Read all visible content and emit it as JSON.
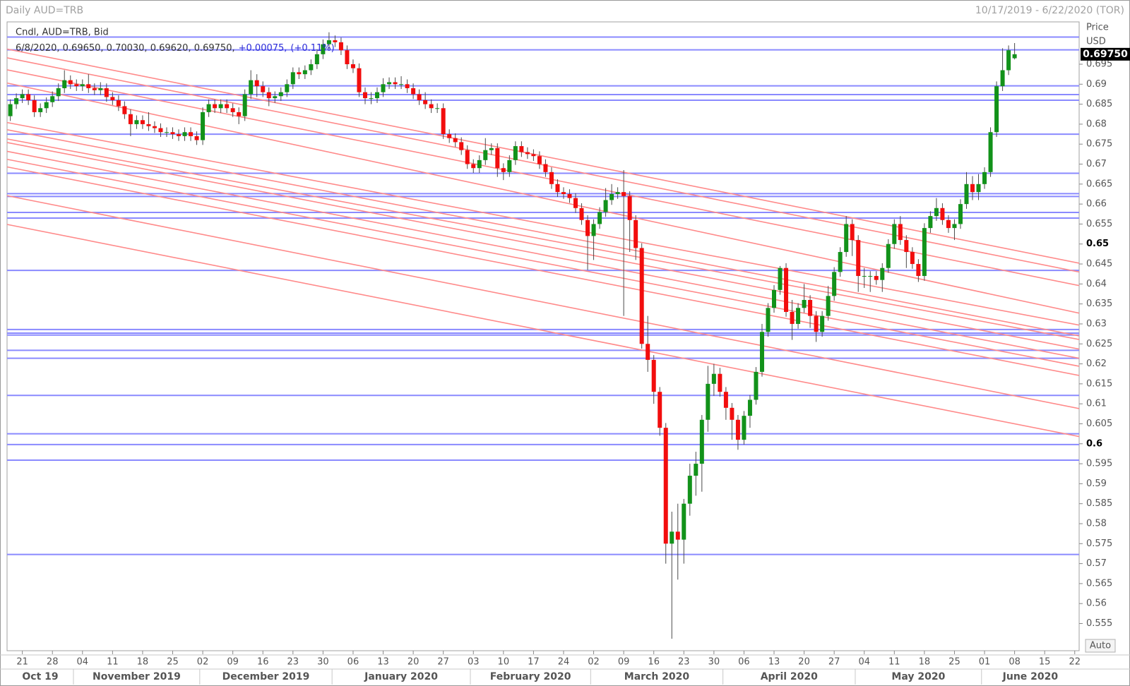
{
  "chart_data": {
    "type": "candlestick",
    "header_left": "Daily AUD=TRB",
    "header_right": "10/17/2019 - 6/22/2020 (TOR)",
    "legend_title": "Cndl, AUD=TRB, Bid",
    "legend_ohlc": "6/8/2020, 0.69650, 0.70030, 0.69620, 0.69750,",
    "legend_change": "+0.00075,",
    "legend_change_pct": "(+0.11%)",
    "y_label": "Price",
    "y_unit": "USD",
    "auto_button": "Auto",
    "up_color": "#12921a",
    "down_color": "#f20d0d",
    "wick_color": "#4a4a4a",
    "level_color": "#8a8aff",
    "trend_color": "#ff8a8a",
    "ylim": [
      0.5482,
      0.7056
    ],
    "yticks": [
      0.555,
      0.56,
      0.565,
      0.57,
      0.575,
      0.58,
      0.585,
      0.59,
      0.595,
      0.6,
      0.605,
      0.61,
      0.615,
      0.62,
      0.625,
      0.63,
      0.635,
      0.64,
      0.645,
      0.65,
      0.655,
      0.66,
      0.665,
      0.67,
      0.675,
      0.68,
      0.685,
      0.69,
      0.695
    ],
    "last_price": {
      "value": 0.6975,
      "label": "0.69750"
    },
    "xticks": [
      {
        "value": "2019-10-21",
        "label": "21"
      },
      {
        "value": "2019-10-28",
        "label": "28"
      },
      {
        "value": "2019-11-04",
        "label": "04"
      },
      {
        "value": "2019-11-11",
        "label": "11"
      },
      {
        "value": "2019-11-18",
        "label": "18"
      },
      {
        "value": "2019-11-25",
        "label": "25"
      },
      {
        "value": "2019-12-02",
        "label": "02"
      },
      {
        "value": "2019-12-09",
        "label": "09"
      },
      {
        "value": "2019-12-16",
        "label": "16"
      },
      {
        "value": "2019-12-23",
        "label": "23"
      },
      {
        "value": "2019-12-30",
        "label": "30"
      },
      {
        "value": "2020-01-06",
        "label": "06"
      },
      {
        "value": "2020-01-13",
        "label": "13"
      },
      {
        "value": "2020-01-20",
        "label": "20"
      },
      {
        "value": "2020-01-27",
        "label": "27"
      },
      {
        "value": "2020-02-03",
        "label": "03"
      },
      {
        "value": "2020-02-10",
        "label": "10"
      },
      {
        "value": "2020-02-17",
        "label": "17"
      },
      {
        "value": "2020-02-24",
        "label": "24"
      },
      {
        "value": "2020-03-02",
        "label": "02"
      },
      {
        "value": "2020-03-09",
        "label": "09"
      },
      {
        "value": "2020-03-16",
        "label": "16"
      },
      {
        "value": "2020-03-23",
        "label": "23"
      },
      {
        "value": "2020-03-30",
        "label": "30"
      },
      {
        "value": "2020-04-06",
        "label": "06"
      },
      {
        "value": "2020-04-13",
        "label": "13"
      },
      {
        "value": "2020-04-20",
        "label": "20"
      },
      {
        "value": "2020-04-27",
        "label": "27"
      },
      {
        "value": "2020-05-04",
        "label": "04"
      },
      {
        "value": "2020-05-11",
        "label": "11"
      },
      {
        "value": "2020-05-18",
        "label": "18"
      },
      {
        "value": "2020-05-25",
        "label": "25"
      },
      {
        "value": "2020-06-01",
        "label": "01"
      },
      {
        "value": "2020-06-08",
        "label": "08"
      },
      {
        "value": "2020-06-15",
        "label": "15"
      },
      {
        "value": "2020-06-22",
        "label": "22"
      }
    ],
    "month_labels": [
      {
        "value": "2019-10-01",
        "label": "Oct 19"
      },
      {
        "value": "2019-11-01",
        "label": "November 2019"
      },
      {
        "value": "2019-12-01",
        "label": "December 2019"
      },
      {
        "value": "2020-01-01",
        "label": "January 2020"
      },
      {
        "value": "2020-02-01",
        "label": "February 2020"
      },
      {
        "value": "2020-03-01",
        "label": "March 2020"
      },
      {
        "value": "2020-04-01",
        "label": "April 2020"
      },
      {
        "value": "2020-05-01",
        "label": "May 2020"
      },
      {
        "value": "2020-06-01",
        "label": "June 2020"
      }
    ],
    "levels": [
      0.7018,
      0.6986,
      0.6896,
      0.6874,
      0.686,
      0.6775,
      0.6677,
      0.6626,
      0.6619,
      0.6579,
      0.6565,
      0.6434,
      0.6286,
      0.6277,
      0.6272,
      0.6234,
      0.6214,
      0.6121,
      0.6025,
      0.5998,
      0.5959,
      0.5723
    ],
    "trendlines": [
      {
        "start": 0.6988,
        "end": 0.6452
      },
      {
        "start": 0.6966,
        "end": 0.643
      },
      {
        "start": 0.6936,
        "end": 0.6396
      },
      {
        "start": 0.6903,
        "end": 0.6327
      },
      {
        "start": 0.6804,
        "end": 0.6297
      },
      {
        "start": 0.6786,
        "end": 0.627
      },
      {
        "start": 0.6763,
        "end": 0.6261
      },
      {
        "start": 0.6754,
        "end": 0.6237
      },
      {
        "start": 0.6732,
        "end": 0.6214
      },
      {
        "start": 0.6712,
        "end": 0.6194
      },
      {
        "start": 0.6693,
        "end": 0.6171
      },
      {
        "start": 0.6621,
        "end": 0.6088
      },
      {
        "start": 0.6549,
        "end": 0.6018
      }
    ],
    "x": [
      "2019-10-17",
      "2019-10-18",
      "2019-10-21",
      "2019-10-22",
      "2019-10-23",
      "2019-10-24",
      "2019-10-25",
      "2019-10-28",
      "2019-10-29",
      "2019-10-30",
      "2019-10-31",
      "2019-11-01",
      "2019-11-04",
      "2019-11-05",
      "2019-11-06",
      "2019-11-07",
      "2019-11-08",
      "2019-11-11",
      "2019-11-12",
      "2019-11-13",
      "2019-11-14",
      "2019-11-15",
      "2019-11-18",
      "2019-11-19",
      "2019-11-20",
      "2019-11-21",
      "2019-11-22",
      "2019-11-25",
      "2019-11-26",
      "2019-11-27",
      "2019-11-28",
      "2019-11-29",
      "2019-12-02",
      "2019-12-03",
      "2019-12-04",
      "2019-12-05",
      "2019-12-06",
      "2019-12-09",
      "2019-12-10",
      "2019-12-11",
      "2019-12-12",
      "2019-12-13",
      "2019-12-16",
      "2019-12-17",
      "2019-12-18",
      "2019-12-19",
      "2019-12-20",
      "2019-12-23",
      "2019-12-24",
      "2019-12-25",
      "2019-12-26",
      "2019-12-27",
      "2019-12-30",
      "2019-12-31",
      "2020-01-01",
      "2020-01-02",
      "2020-01-03",
      "2020-01-06",
      "2020-01-07",
      "2020-01-08",
      "2020-01-09",
      "2020-01-10",
      "2020-01-13",
      "2020-01-14",
      "2020-01-15",
      "2020-01-16",
      "2020-01-17",
      "2020-01-20",
      "2020-01-21",
      "2020-01-22",
      "2020-01-23",
      "2020-01-24",
      "2020-01-27",
      "2020-01-28",
      "2020-01-29",
      "2020-01-30",
      "2020-01-31",
      "2020-02-03",
      "2020-02-04",
      "2020-02-05",
      "2020-02-06",
      "2020-02-07",
      "2020-02-10",
      "2020-02-11",
      "2020-02-12",
      "2020-02-13",
      "2020-02-14",
      "2020-02-17",
      "2020-02-18",
      "2020-02-19",
      "2020-02-20",
      "2020-02-21",
      "2020-02-24",
      "2020-02-25",
      "2020-02-26",
      "2020-02-27",
      "2020-02-28",
      "2020-03-02",
      "2020-03-03",
      "2020-03-04",
      "2020-03-05",
      "2020-03-06",
      "2020-03-09",
      "2020-03-10",
      "2020-03-11",
      "2020-03-12",
      "2020-03-13",
      "2020-03-16",
      "2020-03-17",
      "2020-03-18",
      "2020-03-19",
      "2020-03-20",
      "2020-03-23",
      "2020-03-24",
      "2020-03-25",
      "2020-03-26",
      "2020-03-27",
      "2020-03-30",
      "2020-03-31",
      "2020-04-01",
      "2020-04-02",
      "2020-04-03",
      "2020-04-06",
      "2020-04-07",
      "2020-04-08",
      "2020-04-09",
      "2020-04-10",
      "2020-04-13",
      "2020-04-14",
      "2020-04-15",
      "2020-04-16",
      "2020-04-17",
      "2020-04-20",
      "2020-04-21",
      "2020-04-22",
      "2020-04-23",
      "2020-04-24",
      "2020-04-27",
      "2020-04-28",
      "2020-04-29",
      "2020-04-30",
      "2020-05-01",
      "2020-05-04",
      "2020-05-05",
      "2020-05-06",
      "2020-05-07",
      "2020-05-08",
      "2020-05-11",
      "2020-05-12",
      "2020-05-13",
      "2020-05-14",
      "2020-05-15",
      "2020-05-18",
      "2020-05-19",
      "2020-05-20",
      "2020-05-21",
      "2020-05-22",
      "2020-05-25",
      "2020-05-26",
      "2020-05-27",
      "2020-05-28",
      "2020-05-29",
      "2020-06-01",
      "2020-06-02",
      "2020-06-03",
      "2020-06-04",
      "2020-06-05",
      "2020-06-08"
    ],
    "open": [
      0.682,
      0.685,
      0.6865,
      0.6875,
      0.686,
      0.683,
      0.684,
      0.6855,
      0.687,
      0.689,
      0.691,
      0.69,
      0.6895,
      0.69,
      0.689,
      0.6885,
      0.689,
      0.6868,
      0.686,
      0.6845,
      0.6825,
      0.68,
      0.681,
      0.68,
      0.6795,
      0.679,
      0.678,
      0.678,
      0.6775,
      0.677,
      0.678,
      0.677,
      0.676,
      0.683,
      0.685,
      0.684,
      0.685,
      0.684,
      0.683,
      0.682,
      0.6875,
      0.691,
      0.6895,
      0.688,
      0.6865,
      0.687,
      0.688,
      0.69,
      0.693,
      0.6925,
      0.6935,
      0.695,
      0.6975,
      0.7,
      0.701,
      0.7005,
      0.6985,
      0.695,
      0.694,
      0.688,
      0.6865,
      0.6865,
      0.688,
      0.69,
      0.6905,
      0.69,
      0.69,
      0.689,
      0.6875,
      0.686,
      0.685,
      0.684,
      0.684,
      0.6775,
      0.6765,
      0.6755,
      0.6735,
      0.67,
      0.669,
      0.671,
      0.6735,
      0.674,
      0.669,
      0.668,
      0.671,
      0.6745,
      0.673,
      0.6725,
      0.672,
      0.67,
      0.668,
      0.665,
      0.663,
      0.6625,
      0.6615,
      0.659,
      0.656,
      0.652,
      0.655,
      0.658,
      0.661,
      0.6625,
      0.663,
      0.662,
      0.656,
      0.649,
      0.625,
      0.621,
      0.613,
      0.604,
      0.575,
      0.578,
      0.576,
      0.585,
      0.592,
      0.595,
      0.606,
      0.615,
      0.6175,
      0.613,
      0.609,
      0.606,
      0.601,
      0.607,
      0.611,
      0.618,
      0.628,
      0.634,
      0.6385,
      0.644,
      0.633,
      0.63,
      0.634,
      0.636,
      0.632,
      0.628,
      0.632,
      0.637,
      0.643,
      0.648,
      0.655,
      0.651,
      0.642,
      0.642,
      0.642,
      0.641,
      0.644,
      0.65,
      0.655,
      0.651,
      0.648,
      0.645,
      0.642,
      0.654,
      0.657,
      0.659,
      0.656,
      0.654,
      0.655,
      0.66,
      0.665,
      0.663,
      0.665,
      0.668,
      0.678,
      0.6895,
      0.6935,
      0.6965
    ],
    "high": [
      0.6862,
      0.6877,
      0.6887,
      0.6887,
      0.6872,
      0.6852,
      0.6867,
      0.6882,
      0.6902,
      0.6935,
      0.6922,
      0.6912,
      0.6912,
      0.6925,
      0.6902,
      0.6905,
      0.6902,
      0.688,
      0.6872,
      0.6857,
      0.6837,
      0.6822,
      0.6822,
      0.683,
      0.6807,
      0.6802,
      0.6792,
      0.6792,
      0.6787,
      0.6792,
      0.6792,
      0.6782,
      0.6842,
      0.6862,
      0.6862,
      0.6862,
      0.6862,
      0.6852,
      0.6842,
      0.6887,
      0.6935,
      0.6925,
      0.6907,
      0.6892,
      0.6882,
      0.6892,
      0.6912,
      0.6942,
      0.6942,
      0.6947,
      0.6962,
      0.6987,
      0.7012,
      0.703,
      0.7022,
      0.7017,
      0.6997,
      0.6962,
      0.6952,
      0.6892,
      0.688,
      0.6892,
      0.6915,
      0.6917,
      0.6917,
      0.692,
      0.6912,
      0.6902,
      0.6887,
      0.688,
      0.6862,
      0.6852,
      0.6852,
      0.6787,
      0.6777,
      0.6767,
      0.6747,
      0.6712,
      0.6722,
      0.6765,
      0.6752,
      0.6752,
      0.6702,
      0.6722,
      0.6757,
      0.6757,
      0.6742,
      0.6737,
      0.6732,
      0.6712,
      0.6692,
      0.6662,
      0.6642,
      0.6637,
      0.6627,
      0.6602,
      0.6572,
      0.6562,
      0.6592,
      0.664,
      0.665,
      0.6642,
      0.6685,
      0.6632,
      0.6572,
      0.6502,
      0.632,
      0.6222,
      0.6142,
      0.6052,
      0.583,
      0.585,
      0.5862,
      0.595,
      0.598,
      0.6072,
      0.6195,
      0.62,
      0.619,
      0.6142,
      0.6102,
      0.6072,
      0.6082,
      0.6122,
      0.6192,
      0.63,
      0.6352,
      0.6397,
      0.6445,
      0.6452,
      0.636,
      0.6352,
      0.64,
      0.6372,
      0.6332,
      0.6332,
      0.6395,
      0.6442,
      0.6492,
      0.657,
      0.6562,
      0.6522,
      0.644,
      0.6432,
      0.6432,
      0.6452,
      0.6512,
      0.6562,
      0.657,
      0.6522,
      0.6492,
      0.6462,
      0.6552,
      0.6582,
      0.6615,
      0.6602,
      0.6572,
      0.6562,
      0.6612,
      0.668,
      0.667,
      0.6675,
      0.6692,
      0.6792,
      0.6907,
      0.699,
      0.6997,
      0.7003
    ],
    "low": [
      0.6808,
      0.6838,
      0.6853,
      0.6848,
      0.6818,
      0.6818,
      0.6828,
      0.6843,
      0.6858,
      0.6878,
      0.6888,
      0.6883,
      0.6883,
      0.6878,
      0.6873,
      0.6873,
      0.6856,
      0.6848,
      0.6833,
      0.6813,
      0.677,
      0.6788,
      0.6788,
      0.6783,
      0.6778,
      0.6768,
      0.6768,
      0.6763,
      0.6758,
      0.6758,
      0.6758,
      0.6748,
      0.6748,
      0.6818,
      0.6828,
      0.6828,
      0.6828,
      0.6818,
      0.68,
      0.6808,
      0.6863,
      0.6868,
      0.6868,
      0.6845,
      0.6853,
      0.6858,
      0.6868,
      0.6888,
      0.6913,
      0.6913,
      0.6923,
      0.6938,
      0.6963,
      0.6988,
      0.6993,
      0.6973,
      0.6938,
      0.6928,
      0.6868,
      0.685,
      0.685,
      0.6853,
      0.6868,
      0.6888,
      0.6888,
      0.6888,
      0.6878,
      0.6863,
      0.6848,
      0.6838,
      0.6828,
      0.6828,
      0.6763,
      0.6753,
      0.6743,
      0.6723,
      0.6688,
      0.6678,
      0.6678,
      0.6698,
      0.6723,
      0.6668,
      0.666,
      0.6668,
      0.6698,
      0.6718,
      0.6713,
      0.6708,
      0.6688,
      0.6668,
      0.6638,
      0.6618,
      0.6613,
      0.6603,
      0.6578,
      0.6548,
      0.6435,
      0.646,
      0.6538,
      0.6568,
      0.6598,
      0.6613,
      0.632,
      0.648,
      0.646,
      0.6238,
      0.618,
      0.61,
      0.602,
      0.57,
      0.5512,
      0.566,
      0.57,
      0.582,
      0.587,
      0.588,
      0.603,
      0.612,
      0.6118,
      0.606,
      0.601,
      0.5985,
      0.5998,
      0.604,
      0.6098,
      0.6168,
      0.6268,
      0.6328,
      0.6373,
      0.6318,
      0.626,
      0.6288,
      0.6328,
      0.629,
      0.6255,
      0.6268,
      0.6308,
      0.6358,
      0.6418,
      0.6468,
      0.647,
      0.638,
      0.639,
      0.638,
      0.6398,
      0.638,
      0.6428,
      0.6488,
      0.6498,
      0.644,
      0.6438,
      0.6405,
      0.6408,
      0.6528,
      0.6558,
      0.6548,
      0.6528,
      0.651,
      0.6538,
      0.6588,
      0.661,
      0.661,
      0.6638,
      0.6668,
      0.6768,
      0.6883,
      0.6923,
      0.6962
    ],
    "close": [
      0.685,
      0.6865,
      0.6875,
      0.686,
      0.683,
      0.684,
      0.6855,
      0.687,
      0.689,
      0.691,
      0.69,
      0.6895,
      0.69,
      0.689,
      0.6885,
      0.689,
      0.6868,
      0.686,
      0.6845,
      0.6825,
      0.68,
      0.681,
      0.68,
      0.6795,
      0.679,
      0.678,
      0.678,
      0.6775,
      0.677,
      0.678,
      0.677,
      0.676,
      0.683,
      0.685,
      0.684,
      0.685,
      0.684,
      0.683,
      0.682,
      0.6875,
      0.691,
      0.6895,
      0.688,
      0.6865,
      0.687,
      0.688,
      0.69,
      0.693,
      0.6925,
      0.6935,
      0.695,
      0.6975,
      0.7,
      0.701,
      0.7005,
      0.6985,
      0.695,
      0.694,
      0.688,
      0.6865,
      0.6865,
      0.688,
      0.69,
      0.6905,
      0.69,
      0.69,
      0.689,
      0.6875,
      0.686,
      0.685,
      0.684,
      0.684,
      0.6775,
      0.6765,
      0.6755,
      0.6735,
      0.67,
      0.669,
      0.671,
      0.6735,
      0.674,
      0.669,
      0.668,
      0.671,
      0.6745,
      0.673,
      0.6725,
      0.672,
      0.67,
      0.668,
      0.665,
      0.663,
      0.6625,
      0.6615,
      0.659,
      0.656,
      0.652,
      0.655,
      0.658,
      0.661,
      0.6625,
      0.663,
      0.662,
      0.656,
      0.649,
      0.625,
      0.621,
      0.613,
      0.604,
      0.575,
      0.578,
      0.576,
      0.585,
      0.592,
      0.595,
      0.606,
      0.615,
      0.6175,
      0.613,
      0.609,
      0.606,
      0.601,
      0.607,
      0.611,
      0.618,
      0.628,
      0.634,
      0.6385,
      0.644,
      0.633,
      0.63,
      0.634,
      0.636,
      0.632,
      0.628,
      0.632,
      0.637,
      0.643,
      0.648,
      0.655,
      0.651,
      0.642,
      0.642,
      0.642,
      0.641,
      0.644,
      0.65,
      0.655,
      0.651,
      0.648,
      0.645,
      0.642,
      0.654,
      0.657,
      0.659,
      0.656,
      0.654,
      0.655,
      0.66,
      0.665,
      0.663,
      0.665,
      0.668,
      0.678,
      0.6895,
      0.6935,
      0.6985,
      0.6975
    ]
  }
}
